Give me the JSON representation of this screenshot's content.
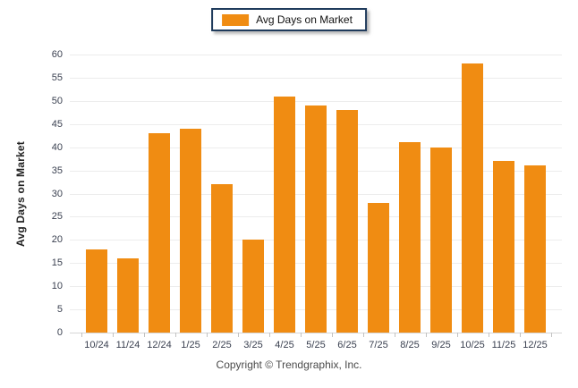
{
  "legend": {
    "label": "Avg Days on Market"
  },
  "footer": {
    "copyright": "Copyright © Trendgraphix, Inc."
  },
  "colors": {
    "bar": "#F08C12",
    "legend_border": "#1F3B5C",
    "gridline": "#ECECEC",
    "tick_label": "#3A4050"
  },
  "chart_data": {
    "type": "bar",
    "title": "",
    "categories": [
      "10/24",
      "11/24",
      "12/24",
      "1/25",
      "2/25",
      "3/25",
      "4/25",
      "5/25",
      "6/25",
      "7/25",
      "8/25",
      "9/25",
      "10/25",
      "11/25",
      "12/25"
    ],
    "values": [
      18,
      16,
      43,
      44,
      32,
      20,
      51,
      49,
      48,
      28,
      41,
      40,
      58,
      37,
      36
    ],
    "series_name": "Avg Days on Market",
    "xlabel": "",
    "ylabel": "Avg Days on Market",
    "ylim": [
      0,
      60
    ],
    "ytick_step": 5,
    "grid": true,
    "legend_position": "top-center",
    "footnote": "Copyright © Trendgraphix, Inc."
  }
}
